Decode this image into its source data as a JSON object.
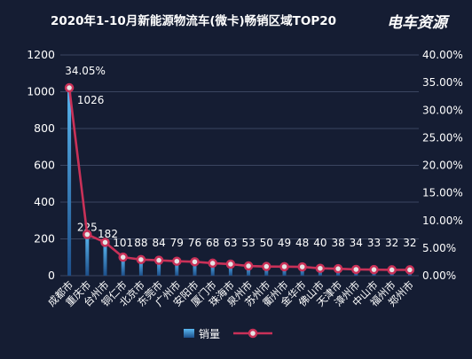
{
  "chart_data": {
    "type": "bar",
    "title": "2020年1-10月新能源物流车(微卡)畅销区域TOP20",
    "brand": "电车资源",
    "categories": [
      "成都市",
      "重庆市",
      "台州市",
      "铜仁市",
      "北京市",
      "东莞市",
      "广州市",
      "安阳市",
      "厦门市",
      "珠海市",
      "泉州市",
      "苏州市",
      "衢州市",
      "金华市",
      "佛山市",
      "天津市",
      "漳州市",
      "中山市",
      "福州市",
      "郑州市"
    ],
    "series": [
      {
        "name": "销量",
        "type": "bar",
        "axis": "left",
        "values": [
          1026,
          225,
          182,
          101,
          88,
          84,
          79,
          76,
          68,
          63,
          53,
          50,
          49,
          48,
          40,
          38,
          34,
          33,
          32,
          32
        ]
      },
      {
        "name": "",
        "type": "line",
        "axis": "right",
        "values": [
          34.05,
          7.47,
          6.04,
          3.35,
          2.92,
          2.79,
          2.62,
          2.52,
          2.26,
          2.09,
          1.76,
          1.66,
          1.63,
          1.59,
          1.33,
          1.26,
          1.13,
          1.1,
          1.06,
          1.06
        ],
        "labeled_point": {
          "index": 0,
          "label": "34.05%"
        }
      }
    ],
    "y_left": {
      "range": [
        0,
        1200
      ],
      "ticks": [
        "0",
        "200",
        "400",
        "600",
        "800",
        "1000",
        "1200"
      ]
    },
    "y_right": {
      "range": [
        0,
        40
      ],
      "ticks": [
        "0.00%",
        "5.00%",
        "10.00%",
        "15.00%",
        "20.00%",
        "25.00%",
        "30.00%",
        "35.00%",
        "40.00%"
      ]
    },
    "grid": "horizontal",
    "legend_position": "bottom-center",
    "colors": {
      "background": "#151d33",
      "bar_top": "#5ab8f2",
      "bar_bottom": "#1d4f8a",
      "line": "#c93158",
      "marker_fill": "#e5e5e5",
      "grid": "#3b4560",
      "text": "#ffffff"
    }
  }
}
